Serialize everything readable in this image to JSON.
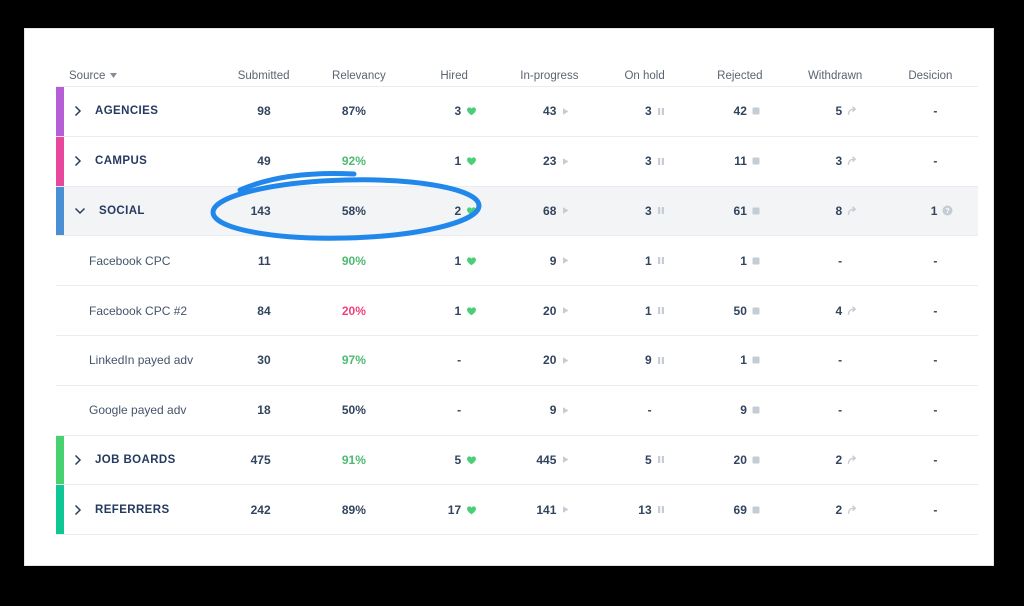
{
  "frame": {
    "background": "#000000"
  },
  "card": {
    "background": "#ffffff",
    "border": "#e2e5e9"
  },
  "colors": {
    "icon_gray": "#c5ccd4",
    "heart_green": "#4bce78",
    "chevron_navy": "#2c3e55",
    "value_navy": "#32445e",
    "relevancy_green": "#4cbb71",
    "relevancy_red": "#f0437c",
    "header_gray": "#5b6470",
    "row_border": "#eaecef",
    "highlight_row_bg": "#f2f4f6"
  },
  "annotation": {
    "shape": "hand-drawn-ellipse",
    "color": "#2287ea",
    "circled_values": [
      "143",
      "58%",
      "2"
    ]
  },
  "table": {
    "columns": [
      {
        "label": "Source",
        "sortable": true
      },
      {
        "label": "Submitted"
      },
      {
        "label": "Relevancy"
      },
      {
        "label": "Hired"
      },
      {
        "label": "In-progress"
      },
      {
        "label": "On hold"
      },
      {
        "label": "Rejected"
      },
      {
        "label": "Withdrawn"
      },
      {
        "label": "Desicion"
      }
    ],
    "metric_keys": [
      "submitted",
      "relevancy",
      "hired",
      "in_progress",
      "on_hold",
      "rejected",
      "withdrawn",
      "decision"
    ],
    "rows": [
      {
        "name": "agencies",
        "level": "group",
        "label": "AGENCIES",
        "bar_color": "#b55ed6",
        "chevron": "right",
        "highlighted": false,
        "cells": {
          "submitted": {
            "value": "98"
          },
          "relevancy": {
            "value": "87%",
            "style": "dark"
          },
          "hired": {
            "value": "3",
            "icon": "heart-icon"
          },
          "in_progress": {
            "value": "43",
            "icon": "play-icon"
          },
          "on_hold": {
            "value": "3",
            "icon": "pause-icon"
          },
          "rejected": {
            "value": "42",
            "icon": "stop-icon"
          },
          "withdrawn": {
            "value": "5",
            "icon": "withdraw-arrow-icon"
          },
          "decision": {
            "value": "-"
          }
        }
      },
      {
        "name": "campus",
        "level": "group",
        "label": "CAMPUS",
        "bar_color": "#e9479c",
        "chevron": "right",
        "highlighted": false,
        "cells": {
          "submitted": {
            "value": "49"
          },
          "relevancy": {
            "value": "92%",
            "style": "green"
          },
          "hired": {
            "value": "1",
            "icon": "heart-icon"
          },
          "in_progress": {
            "value": "23",
            "icon": "play-icon"
          },
          "on_hold": {
            "value": "3",
            "icon": "pause-icon"
          },
          "rejected": {
            "value": "11",
            "icon": "stop-icon"
          },
          "withdrawn": {
            "value": "3",
            "icon": "withdraw-arrow-icon"
          },
          "decision": {
            "value": "-"
          }
        }
      },
      {
        "name": "social",
        "level": "group",
        "label": "SOCIAL",
        "bar_color": "#4a8fd3",
        "chevron": "down",
        "highlighted": true,
        "cells": {
          "submitted": {
            "value": "143"
          },
          "relevancy": {
            "value": "58%",
            "style": "dark"
          },
          "hired": {
            "value": "2",
            "icon": "heart-icon"
          },
          "in_progress": {
            "value": "68",
            "icon": "play-icon"
          },
          "on_hold": {
            "value": "3",
            "icon": "pause-icon"
          },
          "rejected": {
            "value": "61",
            "icon": "stop-icon"
          },
          "withdrawn": {
            "value": "8",
            "icon": "withdraw-arrow-icon"
          },
          "decision": {
            "value": "1",
            "icon": "question-icon"
          }
        }
      },
      {
        "name": "facebook-cpc",
        "level": "sub",
        "label": "Facebook CPC",
        "highlighted": false,
        "cells": {
          "submitted": {
            "value": "11"
          },
          "relevancy": {
            "value": "90%",
            "style": "green"
          },
          "hired": {
            "value": "1",
            "icon": "heart-icon"
          },
          "in_progress": {
            "value": "9",
            "icon": "play-icon"
          },
          "on_hold": {
            "value": "1",
            "icon": "pause-icon"
          },
          "rejected": {
            "value": "1",
            "icon": "stop-icon"
          },
          "withdrawn": {
            "value": "-"
          },
          "decision": {
            "value": "-"
          }
        }
      },
      {
        "name": "facebook-cpc-2",
        "level": "sub",
        "label": "Facebook CPC #2",
        "highlighted": false,
        "cells": {
          "submitted": {
            "value": "84"
          },
          "relevancy": {
            "value": "20%",
            "style": "red"
          },
          "hired": {
            "value": "1",
            "icon": "heart-icon"
          },
          "in_progress": {
            "value": "20",
            "icon": "play-icon"
          },
          "on_hold": {
            "value": "1",
            "icon": "pause-icon"
          },
          "rejected": {
            "value": "50",
            "icon": "stop-icon"
          },
          "withdrawn": {
            "value": "4",
            "icon": "withdraw-arrow-icon"
          },
          "decision": {
            "value": "-"
          }
        }
      },
      {
        "name": "linkedin-payed-adv",
        "level": "sub",
        "label": "LinkedIn payed adv",
        "highlighted": false,
        "cells": {
          "submitted": {
            "value": "30"
          },
          "relevancy": {
            "value": "97%",
            "style": "green"
          },
          "hired": {
            "value": "-"
          },
          "in_progress": {
            "value": "20",
            "icon": "play-icon"
          },
          "on_hold": {
            "value": "9",
            "icon": "pause-icon"
          },
          "rejected": {
            "value": "1",
            "icon": "stop-icon"
          },
          "withdrawn": {
            "value": "-"
          },
          "decision": {
            "value": "-"
          }
        }
      },
      {
        "name": "google-payed-adv",
        "level": "sub",
        "label": "Google payed adv",
        "highlighted": false,
        "cells": {
          "submitted": {
            "value": "18"
          },
          "relevancy": {
            "value": "50%",
            "style": "dark"
          },
          "hired": {
            "value": "-"
          },
          "in_progress": {
            "value": "9",
            "icon": "play-icon"
          },
          "on_hold": {
            "value": "-"
          },
          "rejected": {
            "value": "9",
            "icon": "stop-icon"
          },
          "withdrawn": {
            "value": "-"
          },
          "decision": {
            "value": "-"
          }
        }
      },
      {
        "name": "job-boards",
        "level": "group",
        "label": "JOB BOARDS",
        "bar_color": "#47d16f",
        "chevron": "right",
        "highlighted": false,
        "cells": {
          "submitted": {
            "value": "475"
          },
          "relevancy": {
            "value": "91%",
            "style": "green"
          },
          "hired": {
            "value": "5",
            "icon": "heart-icon"
          },
          "in_progress": {
            "value": "445",
            "icon": "play-icon"
          },
          "on_hold": {
            "value": "5",
            "icon": "pause-icon"
          },
          "rejected": {
            "value": "20",
            "icon": "stop-icon"
          },
          "withdrawn": {
            "value": "2",
            "icon": "withdraw-arrow-icon"
          },
          "decision": {
            "value": "-"
          }
        }
      },
      {
        "name": "referrers",
        "level": "group",
        "label": "REFERRERS",
        "bar_color": "#0fc795",
        "chevron": "right",
        "highlighted": false,
        "cells": {
          "submitted": {
            "value": "242"
          },
          "relevancy": {
            "value": "89%",
            "style": "dark"
          },
          "hired": {
            "value": "17",
            "icon": "heart-icon"
          },
          "in_progress": {
            "value": "141",
            "icon": "play-icon"
          },
          "on_hold": {
            "value": "13",
            "icon": "pause-icon"
          },
          "rejected": {
            "value": "69",
            "icon": "stop-icon"
          },
          "withdrawn": {
            "value": "2",
            "icon": "withdraw-arrow-icon"
          },
          "decision": {
            "value": "-"
          }
        }
      }
    ]
  }
}
